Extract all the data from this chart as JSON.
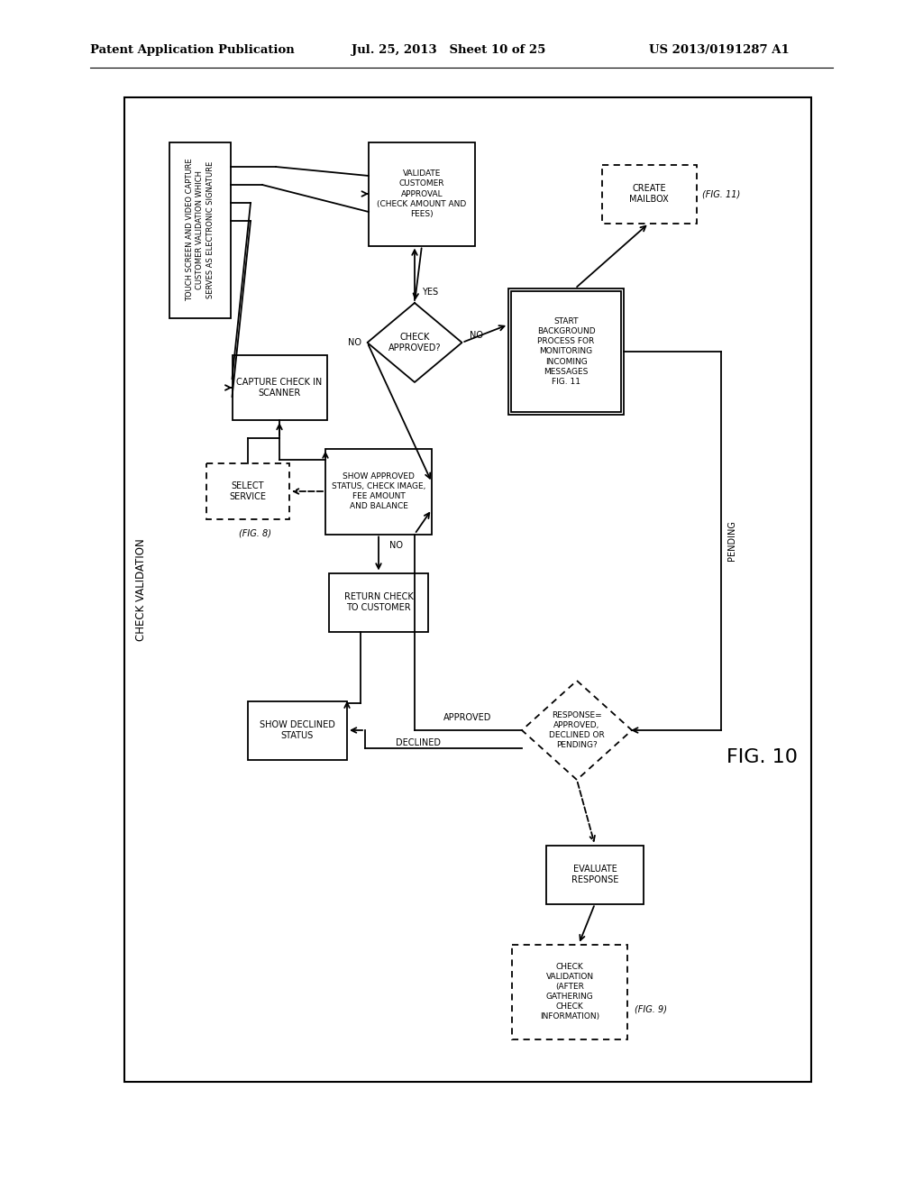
{
  "title_left": "Patent Application Publication",
  "title_mid": "Jul. 25, 2013   Sheet 10 of 25",
  "title_right": "US 2013/0191287 A1",
  "fig_label": "FIG. 10",
  "diagram_label": "CHECK VALIDATION",
  "background": "#ffffff"
}
